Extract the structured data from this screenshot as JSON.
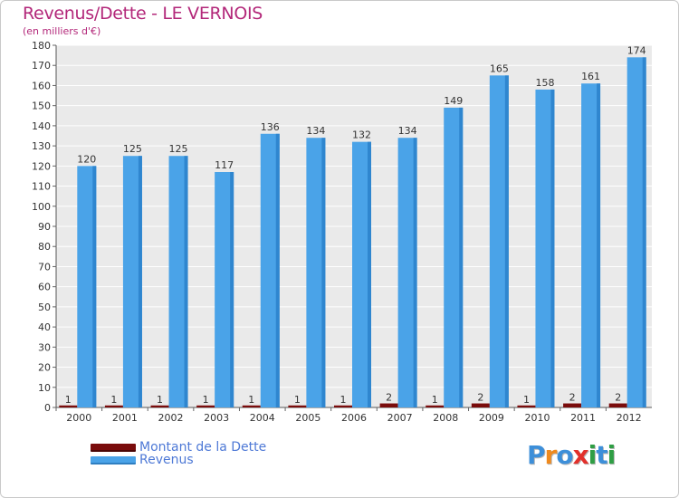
{
  "chart_data": {
    "type": "bar",
    "title": "Revenus/Dette - LE VERNOIS",
    "subtitle": "(en milliers d'€)",
    "xlabel": "",
    "ylabel": "",
    "ylim": [
      0,
      180
    ],
    "ytick_step": 10,
    "grid": true,
    "categories": [
      "2000",
      "2001",
      "2002",
      "2003",
      "2004",
      "2005",
      "2006",
      "2007",
      "2008",
      "2009",
      "2010",
      "2011",
      "2012"
    ],
    "series": [
      {
        "name": "Montant de la Dette",
        "color": "#7a0c0c",
        "values": [
          1,
          1,
          1,
          1,
          1,
          1,
          1,
          2,
          1,
          2,
          1,
          2,
          2
        ]
      },
      {
        "name": "Revenus",
        "color": "#4aa3e8",
        "values": [
          120,
          125,
          125,
          117,
          136,
          134,
          132,
          134,
          149,
          165,
          158,
          161,
          174
        ]
      }
    ]
  },
  "legend": {
    "items": [
      {
        "label": "Montant de la Dette",
        "color": "#7a0c0c"
      },
      {
        "label": "Revenus",
        "color": "#4aa3e8"
      }
    ]
  },
  "logo": {
    "text": "Proxiti",
    "colors": [
      "#3d8fd9",
      "#ef8a1e",
      "#3d8fd9",
      "#e2302b",
      "#2f9e44",
      "#3d8fd9",
      "#2f9e44"
    ]
  }
}
